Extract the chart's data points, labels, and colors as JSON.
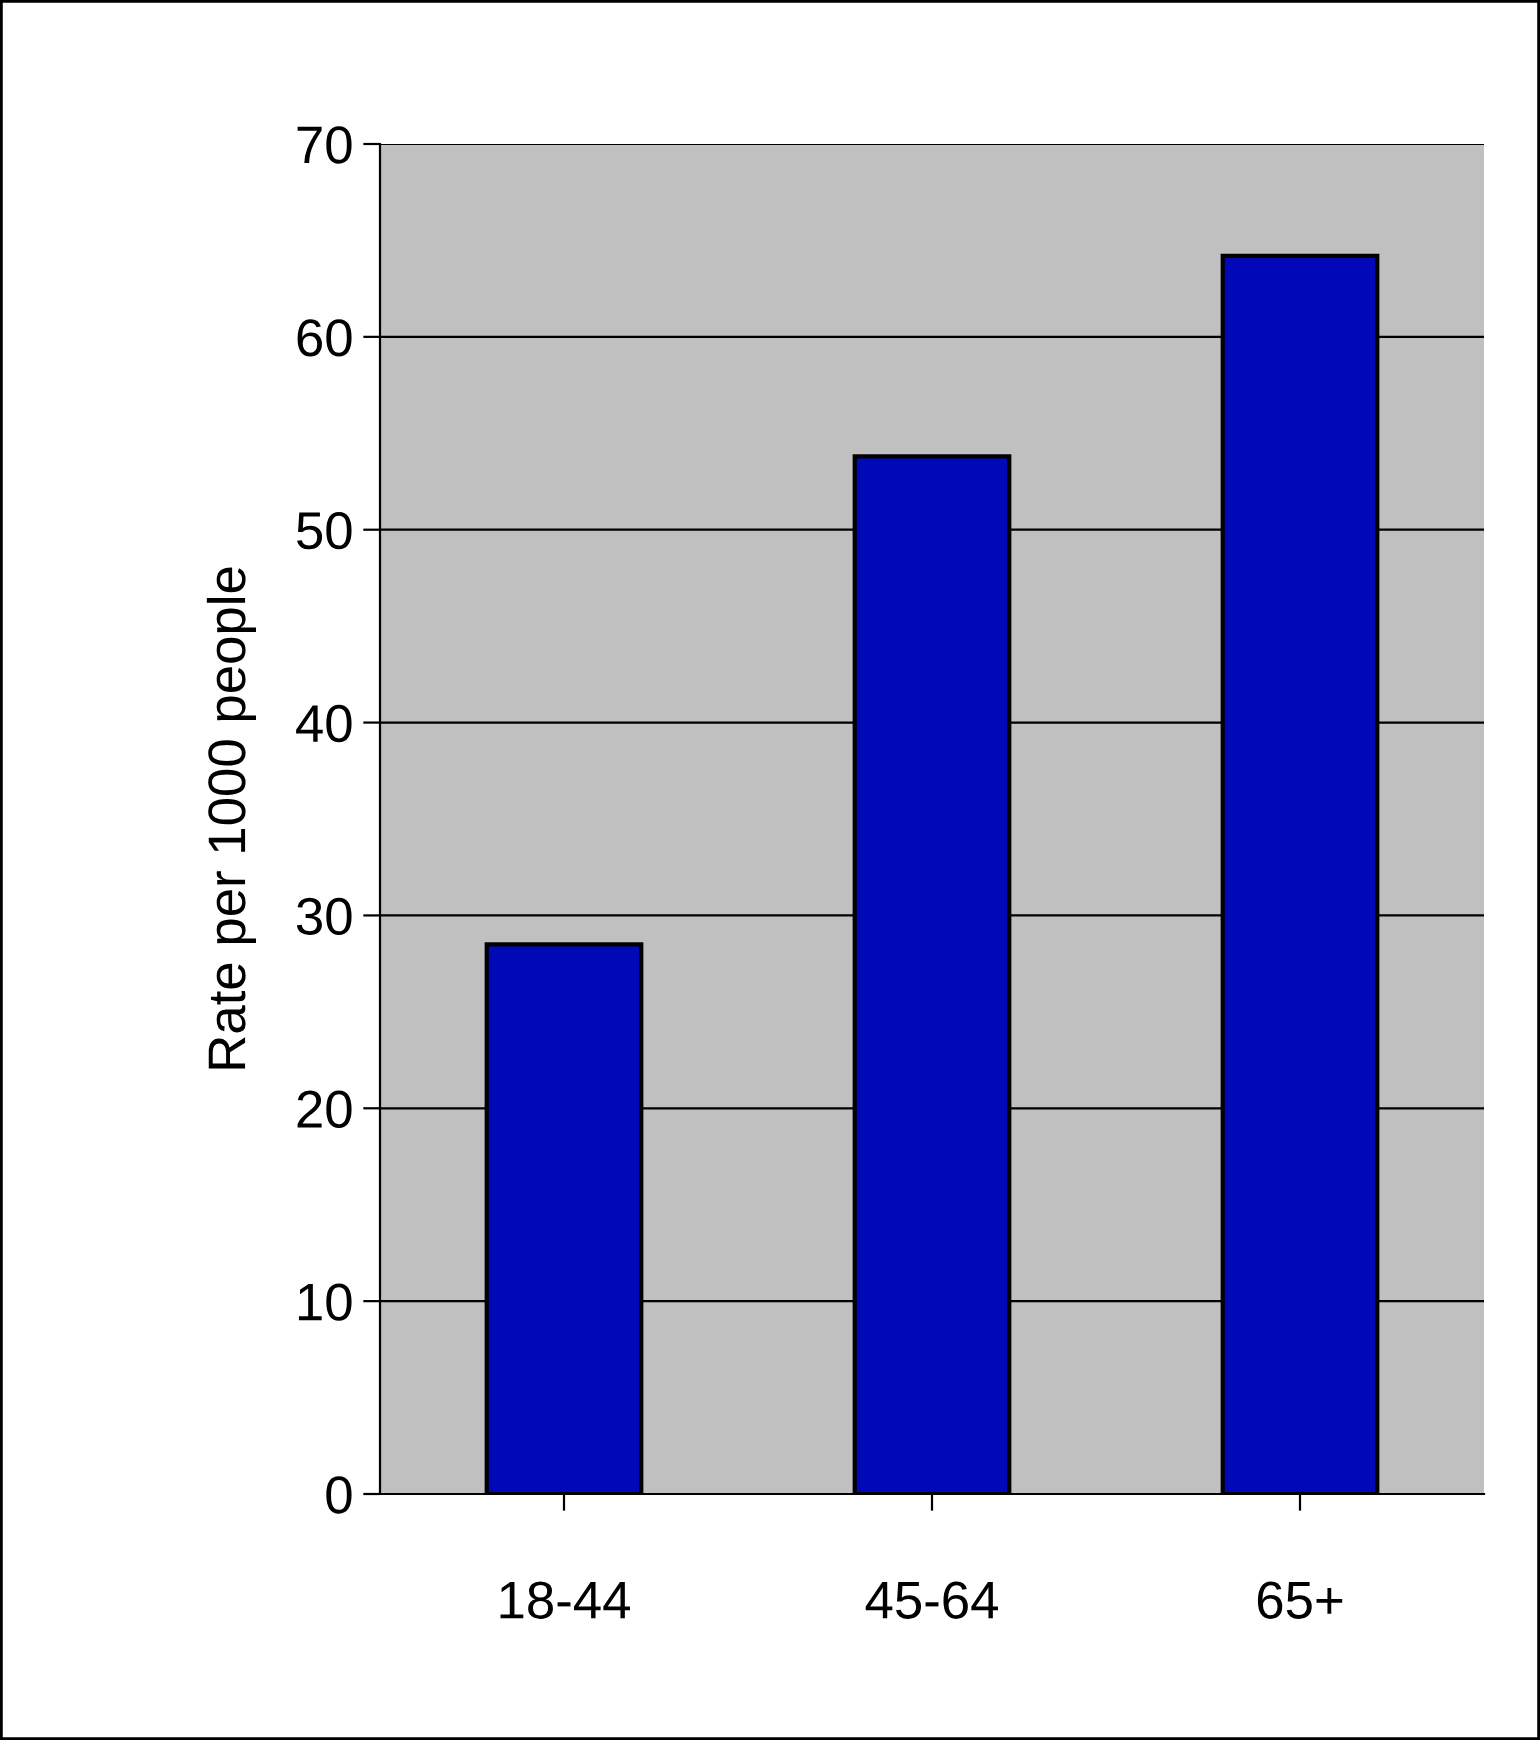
{
  "chart_data": {
    "type": "bar",
    "ylabel": "Rate per 1000 people",
    "categories": [
      "18-44",
      "45-64",
      "65+"
    ],
    "values": [
      28.5,
      53.8,
      64.2
    ],
    "color": "#0008b8",
    "ylim": [
      0,
      70
    ],
    "yticks": [
      0,
      10,
      20,
      30,
      40,
      50,
      60,
      70
    ],
    "grid": "y"
  }
}
